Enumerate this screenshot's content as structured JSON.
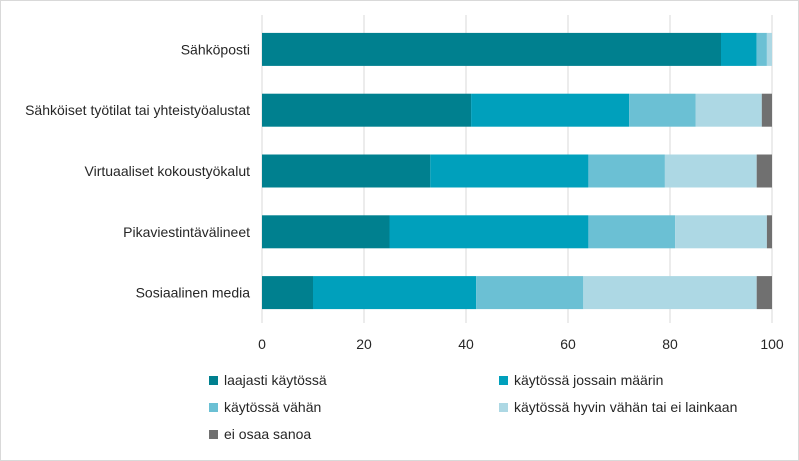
{
  "chart_data": {
    "type": "bar",
    "orientation": "horizontal",
    "stacked": true,
    "categories": [
      "Sähköposti",
      "Sähköiset työtilat tai yhteistyöalustat",
      "Virtuaaliset kokoustyökalut",
      "Pikaviestintävälineet",
      "Sosiaalinen media"
    ],
    "series": [
      {
        "name": "laajasti käytössä",
        "color": "#00808F",
        "values": [
          90,
          41,
          33,
          25,
          10
        ]
      },
      {
        "name": "käytössä jossain määrin",
        "color": "#00A0BC",
        "values": [
          7,
          31,
          31,
          39,
          32
        ]
      },
      {
        "name": "käytössä vähän",
        "color": "#6BC0D4",
        "values": [
          2,
          13,
          15,
          17,
          21
        ]
      },
      {
        "name": "käytössä hyvin vähän tai ei lainkaan",
        "color": "#ADD8E4",
        "values": [
          1,
          13,
          18,
          18,
          34
        ]
      },
      {
        "name": "ei osaa sanoa",
        "color": "#707070",
        "values": [
          0,
          2,
          3,
          1,
          3
        ]
      }
    ],
    "xlim": [
      0,
      100
    ],
    "xticks": [
      "0",
      "20",
      "40",
      "60",
      "80",
      "100"
    ],
    "grid": "vertical",
    "legend_position": "bottom"
  }
}
